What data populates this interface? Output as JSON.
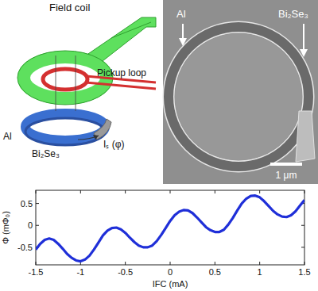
{
  "schematic": {
    "field_coil": "Field coil",
    "pickup_loop": "Pickup loop",
    "al": "Al",
    "bi2se3": "Bi₂Se₃",
    "current": "Iₛ (φ)"
  },
  "micrograph": {
    "al": "Al",
    "bi2se3": "Bi₂Se₃",
    "scale": "1 μm"
  },
  "chart_data": {
    "type": "line",
    "xlabel": "IFC (mA)",
    "ylabel": "Φ (mΦ₀)",
    "color": "#1f2fd8",
    "x": [
      -1.5,
      -1.45,
      -1.4,
      -1.35,
      -1.3,
      -1.25,
      -1.2,
      -1.15,
      -1.1,
      -1.05,
      -1.0,
      -0.95,
      -0.9,
      -0.85,
      -0.8,
      -0.75,
      -0.7,
      -0.65,
      -0.6,
      -0.55,
      -0.5,
      -0.45,
      -0.4,
      -0.35,
      -0.3,
      -0.25,
      -0.2,
      -0.15,
      -0.1,
      -0.05,
      0,
      0.05,
      0.1,
      0.15,
      0.2,
      0.25,
      0.3,
      0.35,
      0.4,
      0.45,
      0.5,
      0.55,
      0.6,
      0.65,
      0.7,
      0.75,
      0.8,
      0.85,
      0.9,
      0.95,
      1.0,
      1.05,
      1.1,
      1.15,
      1.2,
      1.25,
      1.3,
      1.35,
      1.4,
      1.45,
      1.5
    ],
    "values": [
      -0.55,
      -0.42,
      -0.33,
      -0.3,
      -0.33,
      -0.42,
      -0.53,
      -0.65,
      -0.74,
      -0.8,
      -0.82,
      -0.78,
      -0.69,
      -0.55,
      -0.39,
      -0.23,
      -0.12,
      -0.06,
      -0.05,
      -0.09,
      -0.17,
      -0.28,
      -0.38,
      -0.46,
      -0.5,
      -0.5,
      -0.46,
      -0.36,
      -0.22,
      -0.06,
      0.1,
      0.23,
      0.31,
      0.35,
      0.34,
      0.28,
      0.18,
      0.07,
      -0.04,
      -0.11,
      -0.15,
      -0.15,
      -0.1,
      0.02,
      0.17,
      0.34,
      0.5,
      0.61,
      0.67,
      0.68,
      0.64,
      0.55,
      0.44,
      0.33,
      0.25,
      0.2,
      0.19,
      0.23,
      0.32,
      0.45,
      0.58
    ],
    "xlim": [
      -1.5,
      1.5
    ],
    "xticks": [
      -1.5,
      -1,
      -0.5,
      0,
      0.5,
      1,
      1.5
    ],
    "ylim": [
      -0.9,
      0.8
    ],
    "yticks": [
      -0.5,
      0,
      0.5
    ],
    "grid": false
  }
}
